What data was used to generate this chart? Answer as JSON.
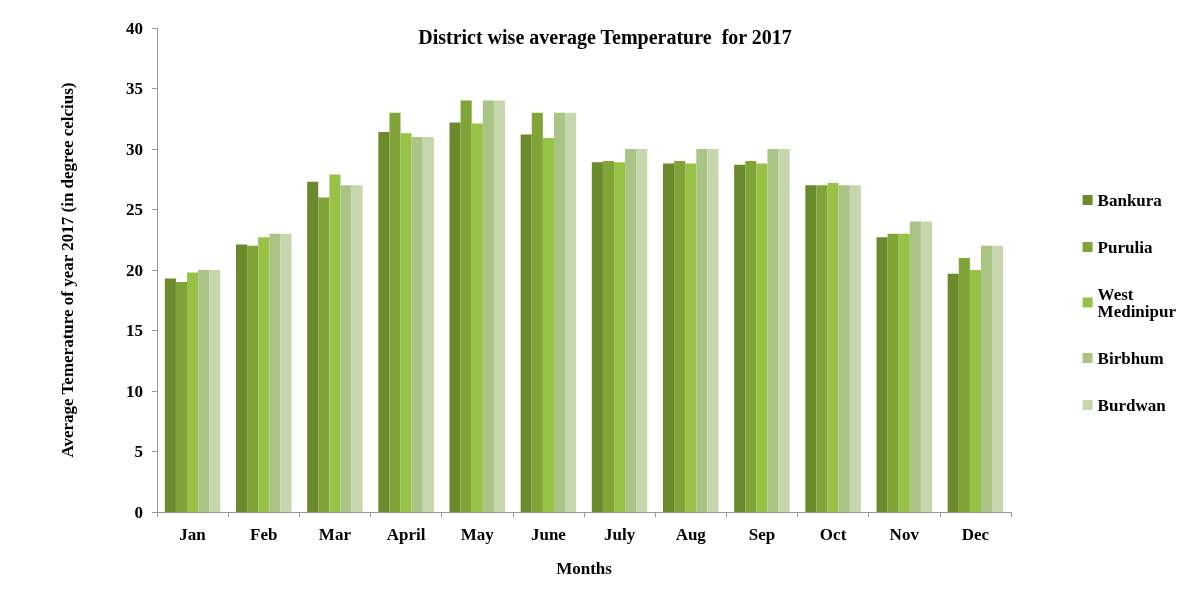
{
  "chart_data": {
    "type": "bar",
    "title": "District wise average Temperature  for 2017",
    "xlabel": "Months",
    "ylabel": "Average Temerature of year 2017 (in degree celcius)",
    "categories": [
      "Jan",
      "Feb",
      "Mar",
      "April",
      "May",
      "June",
      "July",
      "Aug",
      "Sep",
      "Oct",
      "Nov",
      "Dec"
    ],
    "series": [
      {
        "name": "Bankura",
        "color": "#6b8a2c",
        "values": [
          19.3,
          22.1,
          27.3,
          31.4,
          32.2,
          31.2,
          28.9,
          28.8,
          28.7,
          27,
          22.7,
          19.7
        ]
      },
      {
        "name": "Purulia",
        "color": "#80a438",
        "values": [
          19,
          22,
          26,
          33,
          34,
          33,
          29,
          29,
          29,
          27,
          23,
          21
        ]
      },
      {
        "name": "West Medinipur",
        "color": "#98c245",
        "values": [
          19.8,
          22.7,
          27.9,
          31.3,
          32.1,
          30.9,
          28.9,
          28.8,
          28.8,
          27.2,
          23,
          20
        ]
      },
      {
        "name": "Birbhum",
        "color": "#aac485",
        "values": [
          20,
          23,
          27,
          31,
          34,
          33,
          30,
          30,
          30,
          27,
          24,
          22
        ]
      },
      {
        "name": "Burdwan",
        "color": "#c6d6ad",
        "values": [
          20,
          23,
          27,
          31,
          34,
          33,
          30,
          30,
          30,
          27,
          24,
          22
        ]
      }
    ],
    "ylim": [
      0,
      40
    ],
    "yticks": [
      0,
      5,
      10,
      15,
      20,
      25,
      30,
      35,
      40
    ],
    "grid": false,
    "legend": "right"
  }
}
